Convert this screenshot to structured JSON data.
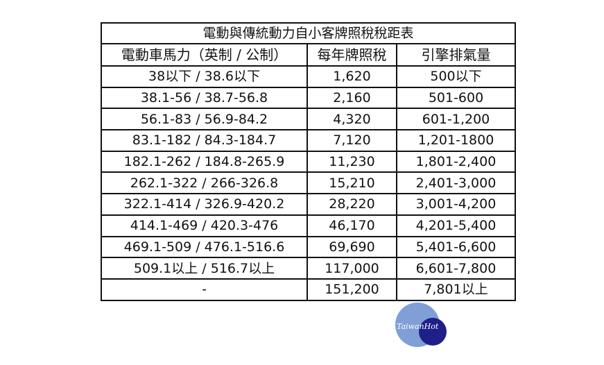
{
  "title": "電動與傳統動力自小客牌照稅稅距表",
  "headers": [
    "電動車馬力（英制 / 公制）",
    "每年牌照稅",
    "引擎排氣量"
  ],
  "rows": [
    [
      "38以下 / 38.6以下",
      "1,620",
      "500以下"
    ],
    [
      "38.1-56 / 38.7-56.8",
      "2,160",
      "501-600"
    ],
    [
      "56.1-83 / 56.9-84.2",
      "4,320",
      "601-1,200"
    ],
    [
      "83.1-182 / 84.3-184.7",
      "7,120",
      "1,201-1800"
    ],
    [
      "182.1-262 / 184.8-265.9",
      "11,230",
      "1,801-2,400"
    ],
    [
      "262.1-322 / 266-326.8",
      "15,210",
      "2,401-3,000"
    ],
    [
      "322.1-414 / 326.9-420.2",
      "28,220",
      "3,001-4,200"
    ],
    [
      "414.1-469 / 420.3-476",
      "46,170",
      "4,201-5,400"
    ],
    [
      "469.1-509 / 476.1-516.6",
      "69,690",
      "5,401-6,600"
    ],
    [
      "509.1以上 / 516.7以上",
      "117,000",
      "6,601-7,800"
    ],
    [
      "-",
      "151,200",
      "7,801以上"
    ]
  ],
  "watermark": {
    "text": "TaiwanHot",
    "colors": {
      "light": "#7f9fd6",
      "dark": "#1f1f8a"
    }
  }
}
